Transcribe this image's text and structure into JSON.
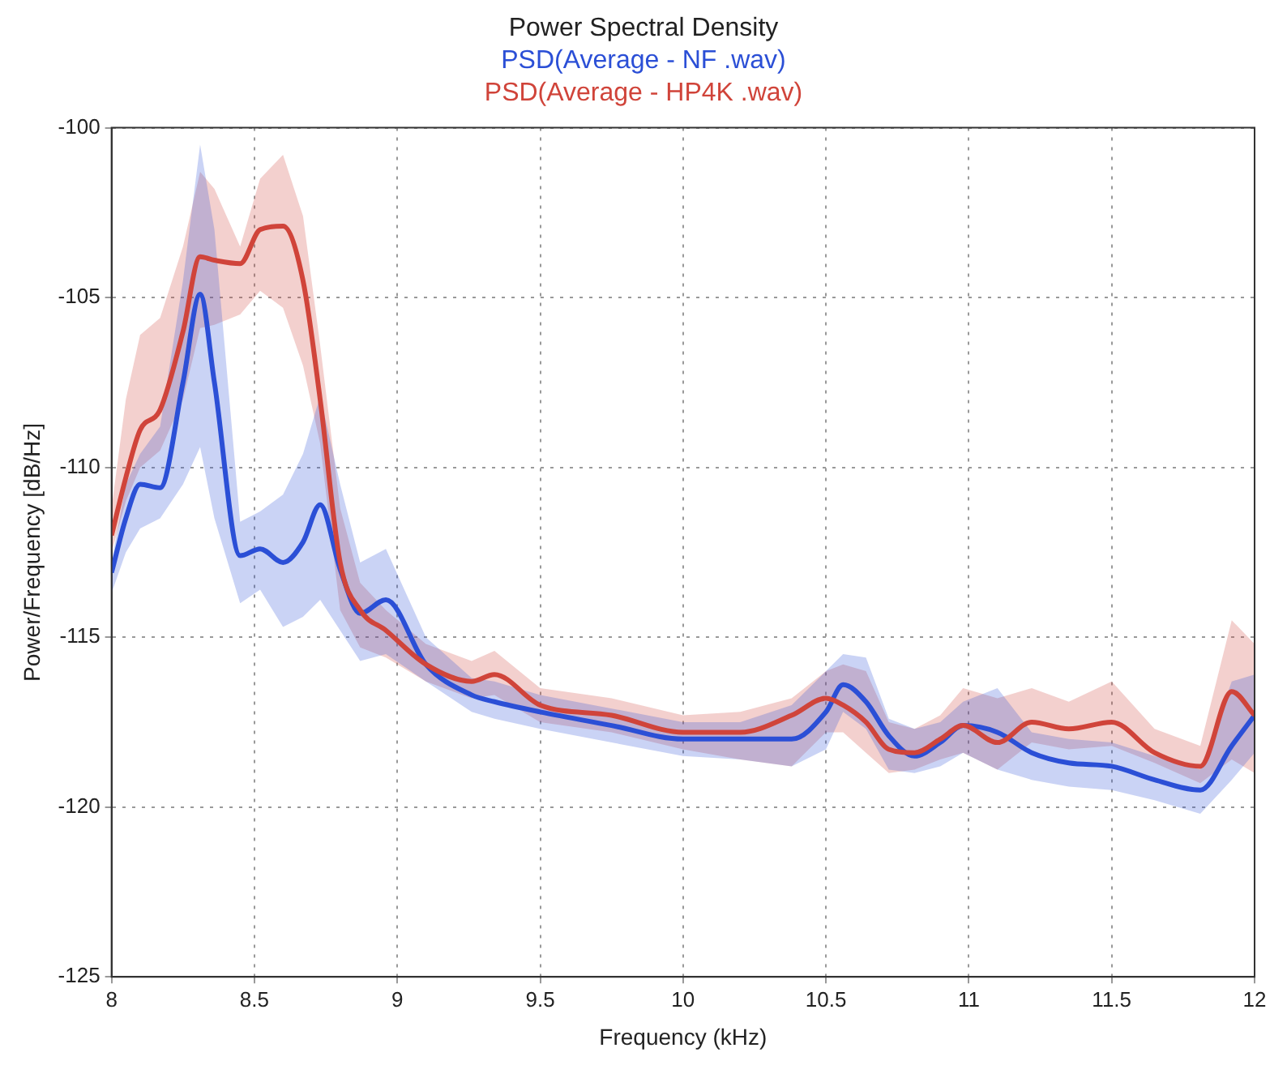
{
  "chart_data": {
    "type": "line",
    "title": "Power Spectral Density",
    "xlabel": "Frequency (kHz)",
    "ylabel": "Power/Frequency [dB/Hz]",
    "x": [
      8,
      8.05,
      8.1,
      8.17,
      8.25,
      8.31,
      8.36,
      8.45,
      8.52,
      8.6,
      8.67,
      8.73,
      8.8,
      8.87,
      8.96,
      9.1,
      9.26,
      9.34,
      9.5,
      9.75,
      10,
      10.2,
      10.38,
      10.5,
      10.56,
      10.64,
      10.72,
      10.81,
      10.9,
      10.98,
      11.1,
      11.22,
      11.35,
      11.5,
      11.65,
      11.81,
      11.92,
      12
    ],
    "series": [
      {
        "name": "PSD(Average - NF .wav)",
        "color": "#2b4fd6",
        "values": [
          -113.1,
          -111.5,
          -110.5,
          -110.6,
          -107.5,
          -104.9,
          -107.5,
          -112.6,
          -112.4,
          -112.8,
          -112.2,
          -111.1,
          -113,
          -114.3,
          -113.9,
          -115.8,
          -116.7,
          -116.9,
          -117.2,
          -117.6,
          -118.0,
          -118.0,
          -118.0,
          -117.2,
          -116.4,
          -116.9,
          -117.9,
          -118.5,
          -118.1,
          -117.6,
          -117.8,
          -118.4,
          -118.7,
          -118.8,
          -119.2,
          -119.5,
          -118.2,
          -117.3
        ],
        "upper": [
          -112.8,
          -110.5,
          -109.6,
          -108.8,
          -104.5,
          -100.5,
          -103,
          -111.6,
          -111.3,
          -110.8,
          -109.6,
          -107.9,
          -110.5,
          -112.8,
          -112.4,
          -115,
          -116.2,
          -116.3,
          -116.7,
          -117.1,
          -117.5,
          -117.5,
          -117.0,
          -116.0,
          -115.5,
          -115.6,
          -117.4,
          -117.7,
          -117.5,
          -116.9,
          -116.5,
          -117.8,
          -118.0,
          -118.1,
          -118.5,
          -118.9,
          -116.3,
          -116.1
        ],
        "lower": [
          -113.7,
          -112.5,
          -111.8,
          -111.5,
          -110.5,
          -109.4,
          -111.5,
          -114,
          -113.6,
          -114.7,
          -114.4,
          -113.9,
          -114.8,
          -115.7,
          -115.5,
          -116.3,
          -117.2,
          -117.4,
          -117.7,
          -118.1,
          -118.5,
          -118.6,
          -118.8,
          -118.3,
          -117.2,
          -117.7,
          -118.9,
          -119.0,
          -118.8,
          -118.4,
          -118.9,
          -119.2,
          -119.4,
          -119.5,
          -119.8,
          -120.2,
          -119.2,
          -118.4
        ]
      },
      {
        "name": "PSD(Average - HP4K .wav)",
        "color": "#d0443a",
        "values": [
          -112,
          -110.3,
          -108.9,
          -108.3,
          -106,
          -103.8,
          -103.9,
          -104,
          -103,
          -102.9,
          -104.5,
          -108,
          -112.8,
          -114.2,
          -114.8,
          -115.8,
          -116.3,
          -116.1,
          -117,
          -117.3,
          -117.8,
          -117.8,
          -117.3,
          -116.8,
          -117.0,
          -117.5,
          -118.3,
          -118.4,
          -118.0,
          -117.6,
          -118.1,
          -117.5,
          -117.7,
          -117.5,
          -118.4,
          -118.8,
          -116.6,
          -117.3
        ],
        "upper": [
          -111.2,
          -108,
          -106.1,
          -105.6,
          -103.5,
          -101.3,
          -101.8,
          -103.5,
          -101.5,
          -100.8,
          -102.6,
          -106.4,
          -111.2,
          -113.4,
          -114.2,
          -115.2,
          -115.7,
          -115.4,
          -116.5,
          -116.8,
          -117.3,
          -117.2,
          -116.8,
          -116.0,
          -115.8,
          -116.0,
          -117.5,
          -117.7,
          -117.3,
          -116.5,
          -116.8,
          -116.5,
          -116.9,
          -116.3,
          -117.7,
          -118.2,
          -114.5,
          -115.2
        ],
        "lower": [
          -112.5,
          -111,
          -110,
          -109.5,
          -108,
          -105.9,
          -105.8,
          -105.5,
          -104.8,
          -105.3,
          -107,
          -109.3,
          -114.2,
          -115.3,
          -115.6,
          -116.3,
          -116.8,
          -116.7,
          -117.5,
          -117.8,
          -118.3,
          -118.6,
          -118.8,
          -117.8,
          -117.8,
          -118.4,
          -119.0,
          -118.9,
          -118.6,
          -118.4,
          -118.9,
          -118.1,
          -118.3,
          -118.2,
          -118.7,
          -119.3,
          -118.6,
          -119.0
        ]
      }
    ],
    "xlim": [
      8,
      12
    ],
    "xticks": [
      8,
      8.5,
      9,
      9.5,
      10,
      10.5,
      11,
      11.5,
      12
    ],
    "ylim": [
      -125,
      -100
    ],
    "yticks": [
      -125,
      -120,
      -115,
      -110,
      -105,
      -100
    ],
    "grid": true,
    "legend": "top",
    "marker": "none",
    "line_style": "solid"
  }
}
